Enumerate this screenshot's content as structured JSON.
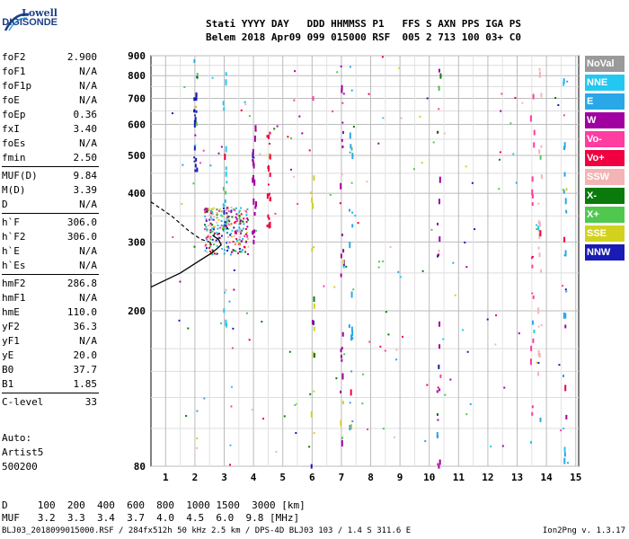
{
  "logo": {
    "line1": "Lowell",
    "line2": "DIGISONDE"
  },
  "header": {
    "line1": "Stati YYYY DAY   DDD HHMMSS P1   FFS S AXN PPS IGA PS",
    "line2": "Belem 2018 Apr09 099 015000 RSF  005 2 713 100 03+ C0"
  },
  "params_group1": [
    {
      "name": "foF2",
      "value": "2.900"
    },
    {
      "name": "foF1",
      "value": "N/A"
    },
    {
      "name": "foF1p",
      "value": "N/A"
    },
    {
      "name": "foE",
      "value": "N/A"
    },
    {
      "name": "foEp",
      "value": "0.36"
    },
    {
      "name": "fxI",
      "value": "3.40"
    },
    {
      "name": "foEs",
      "value": "N/A"
    },
    {
      "name": "fmin",
      "value": "2.50"
    }
  ],
  "params_group2": [
    {
      "name": "MUF(D)",
      "value": "9.84"
    },
    {
      "name": "M(D)",
      "value": "3.39"
    },
    {
      "name": "D",
      "value": "N/A"
    }
  ],
  "params_group3": [
    {
      "name": "h`F",
      "value": "306.0"
    },
    {
      "name": "h`F2",
      "value": "306.0"
    },
    {
      "name": "h`E",
      "value": "N/A"
    },
    {
      "name": "h`Es",
      "value": "N/A"
    }
  ],
  "params_group4": [
    {
      "name": "hmF2",
      "value": "286.8"
    },
    {
      "name": "hmF1",
      "value": "N/A"
    },
    {
      "name": "hmE",
      "value": "110.0"
    },
    {
      "name": "yF2",
      "value": "36.3"
    },
    {
      "name": "yF1",
      "value": "N/A"
    },
    {
      "name": "yE",
      "value": "20.0"
    },
    {
      "name": "B0",
      "value": "37.7"
    },
    {
      "name": "B1",
      "value": "1.85"
    }
  ],
  "params_group5": [
    {
      "name": "C-level",
      "value": "33"
    }
  ],
  "auto": {
    "line1": "Auto:",
    "line2": "Artist5",
    "line3": "500200"
  },
  "legend": [
    {
      "label": "NoVal",
      "color": "#9a9a9a"
    },
    {
      "label": "NNE",
      "color": "#23c8f0"
    },
    {
      "label": "E",
      "color": "#2aa7e8"
    },
    {
      "label": "W",
      "color": "#a000a0"
    },
    {
      "label": "Vo-",
      "color": "#ff3ca0"
    },
    {
      "label": "Vo+",
      "color": "#f00040"
    },
    {
      "label": "SSW",
      "color": "#f5b4b4"
    },
    {
      "label": "X-",
      "color": "#0a7a0a"
    },
    {
      "label": "X+",
      "color": "#50c850"
    },
    {
      "label": "SSE",
      "color": "#d2d21e"
    },
    {
      "label": "NNW",
      "color": "#1a1ab4"
    }
  ],
  "bottom": {
    "line1": "D     100  200  400  600  800  1000 1500  3000 [km]",
    "line2": "MUF   3.2  3.3  3.4  3.7  4.0  4.5  6.0  9.8 [MHz]"
  },
  "footer": "BLJ03_2018099015000.RSF / 284fx512h 50 kHz 2.5 km / DPS-4D BLJ03 103 / 1.4 S 311.6 E",
  "version": "Ion2Png v. 1.3.17",
  "chart_data": {
    "type": "scatter",
    "xlabel": "",
    "ylabel": "",
    "xlim": [
      0.5,
      15.1
    ],
    "ylim": [
      80,
      900
    ],
    "x_ticks": [
      "1",
      "2",
      "3",
      "4",
      "5",
      "6",
      "7",
      "8",
      "9",
      "10",
      "11",
      "12",
      "13",
      "14",
      "15"
    ],
    "y_ticks": [
      "80",
      "200",
      "300",
      "400",
      "500",
      "600",
      "700",
      "800",
      "900"
    ],
    "log_y": true,
    "grid": true,
    "trace_columns": [
      {
        "f": 2.0,
        "h0": 440,
        "h1": 900,
        "color": "#1a1ab4"
      },
      {
        "f": 3.0,
        "h0": 150,
        "h1": 900,
        "color": "#23c8f0"
      },
      {
        "f": 4.0,
        "h0": 300,
        "h1": 600,
        "color": "#a000a0"
      },
      {
        "f": 4.5,
        "h0": 330,
        "h1": 580,
        "color": "#f00040"
      },
      {
        "f": 6.0,
        "h0": 80,
        "h1": 900,
        "color": "#d2d21e"
      },
      {
        "f": 7.0,
        "h0": 90,
        "h1": 900,
        "color": "#a000a0"
      },
      {
        "f": 7.3,
        "h0": 100,
        "h1": 900,
        "color": "#2aa7e8"
      },
      {
        "f": 10.3,
        "h0": 80,
        "h1": 900,
        "color": "#a000a0"
      },
      {
        "f": 13.5,
        "h0": 80,
        "h1": 900,
        "color": "#ff3ca0"
      },
      {
        "f": 13.75,
        "h0": 80,
        "h1": 900,
        "color": "#f5b4b4"
      },
      {
        "f": 14.6,
        "h0": 80,
        "h1": 900,
        "color": "#2aa7e8"
      }
    ],
    "cluster": {
      "f0": 2.3,
      "f1": 3.8,
      "h0": 280,
      "h1": 370
    },
    "profile_solid": [
      [
        0.5,
        230
      ],
      [
        1.5,
        250
      ],
      [
        2.2,
        270
      ],
      [
        2.6,
        282
      ],
      [
        2.9,
        295
      ],
      [
        2.8,
        305
      ],
      [
        2.6,
        312
      ]
    ],
    "profile_dashed": [
      [
        0.5,
        380
      ],
      [
        1.2,
        350
      ],
      [
        1.8,
        320
      ],
      [
        2.2,
        305
      ],
      [
        2.5,
        300
      ]
    ]
  }
}
